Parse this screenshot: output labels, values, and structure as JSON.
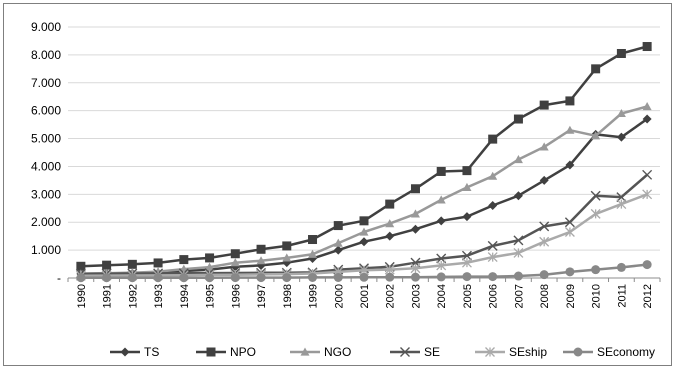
{
  "chart_data": {
    "type": "line",
    "title": "",
    "xlabel": "",
    "ylabel": "",
    "ylim": [
      0,
      9000
    ],
    "y_ticks": [
      "-",
      "1.000",
      "2.000",
      "3.000",
      "4.000",
      "5.000",
      "6.000",
      "7.000",
      "8.000",
      "9.000"
    ],
    "grid": true,
    "legend_position": "bottom",
    "x": [
      "1990",
      "1991",
      "1992",
      "1993",
      "1994",
      "1995",
      "1996",
      "1997",
      "1998",
      "1999",
      "2000",
      "2001",
      "2002",
      "2003",
      "2004",
      "2005",
      "2006",
      "2007",
      "2008",
      "2009",
      "2010",
      "2011",
      "2012"
    ],
    "series": [
      {
        "name": "TS",
        "marker": "diamond",
        "color": "#404040",
        "values": [
          150,
          160,
          170,
          180,
          250,
          300,
          400,
          450,
          550,
          700,
          1000,
          1300,
          1500,
          1750,
          2050,
          2200,
          2600,
          2950,
          3500,
          4050,
          5150,
          5050,
          5700
        ]
      },
      {
        "name": "NPO",
        "marker": "square",
        "color": "#404040",
        "values": [
          420,
          460,
          490,
          540,
          660,
          720,
          870,
          1030,
          1150,
          1380,
          1880,
          2050,
          2650,
          3200,
          3820,
          3850,
          4980,
          5700,
          6200,
          6350,
          7500,
          8050,
          8300
        ]
      },
      {
        "name": "NGO",
        "marker": "triangle",
        "color": "#999999",
        "values": [
          150,
          170,
          190,
          230,
          320,
          390,
          550,
          620,
          720,
          850,
          1250,
          1650,
          1950,
          2300,
          2800,
          3250,
          3650,
          4250,
          4700,
          5300,
          5100,
          5900,
          6150
        ]
      },
      {
        "name": "SE",
        "marker": "x",
        "color": "#555555",
        "values": [
          150,
          155,
          160,
          165,
          170,
          175,
          180,
          185,
          190,
          200,
          300,
          350,
          400,
          550,
          700,
          800,
          1150,
          1350,
          1850,
          2000,
          2950,
          2900,
          3700
        ]
      },
      {
        "name": "SEship",
        "marker": "asterisk",
        "color": "#aaaaaa",
        "values": [
          80,
          85,
          90,
          95,
          100,
          110,
          120,
          130,
          140,
          160,
          220,
          280,
          300,
          350,
          450,
          550,
          750,
          900,
          1300,
          1650,
          2300,
          2650,
          3000
        ]
      },
      {
        "name": "SEconomy",
        "marker": "circle",
        "color": "#888888",
        "values": [
          10,
          10,
          10,
          10,
          10,
          10,
          15,
          15,
          15,
          20,
          20,
          25,
          30,
          30,
          40,
          50,
          50,
          70,
          120,
          220,
          300,
          380,
          480
        ]
      }
    ]
  }
}
